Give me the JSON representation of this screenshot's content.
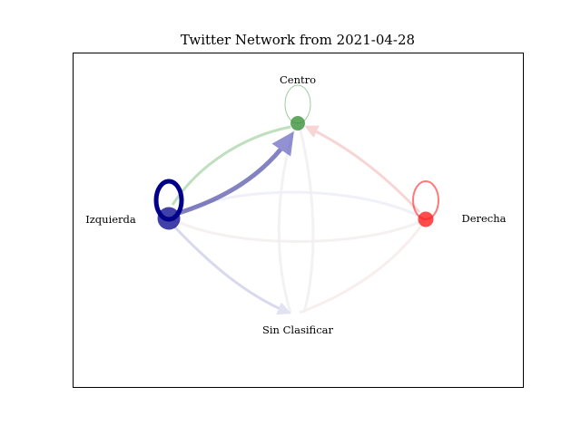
{
  "title": "Twitter Network from 2021-04-28",
  "nodes": [
    {
      "id": "centro",
      "label": "Centro",
      "color": "#2e8b2e",
      "self_loop": true
    },
    {
      "id": "izquierda",
      "label": "Izquierda",
      "color": "#00008b",
      "self_loop": true
    },
    {
      "id": "derecha",
      "label": "Derecha",
      "color": "#ff1f1f",
      "self_loop": true
    },
    {
      "id": "sin_clasificar",
      "label": "Sin Clasificar",
      "color": "#e8e8f4",
      "self_loop": false
    }
  ],
  "edges": [
    {
      "from": "izquierda",
      "to": "centro",
      "color": "#1f1f8f",
      "strength": "strong"
    },
    {
      "from": "izquierda",
      "to": "centro",
      "color": "#7ec27e",
      "strength": "medium"
    },
    {
      "from": "derecha",
      "to": "centro",
      "color": "#f4b8b8",
      "strength": "weak"
    },
    {
      "from": "izquierda",
      "to": "sin_clasificar",
      "color": "#c9c9e6",
      "strength": "weak"
    },
    {
      "from": "izquierda",
      "to": "derecha",
      "color": "#ececf6",
      "strength": "faint"
    },
    {
      "from": "derecha",
      "to": "sin_clasificar",
      "color": "#f6eaea",
      "strength": "faint"
    },
    {
      "from": "sin_clasificar",
      "to": "centro",
      "color": "#eeeeee",
      "strength": "faint"
    }
  ]
}
